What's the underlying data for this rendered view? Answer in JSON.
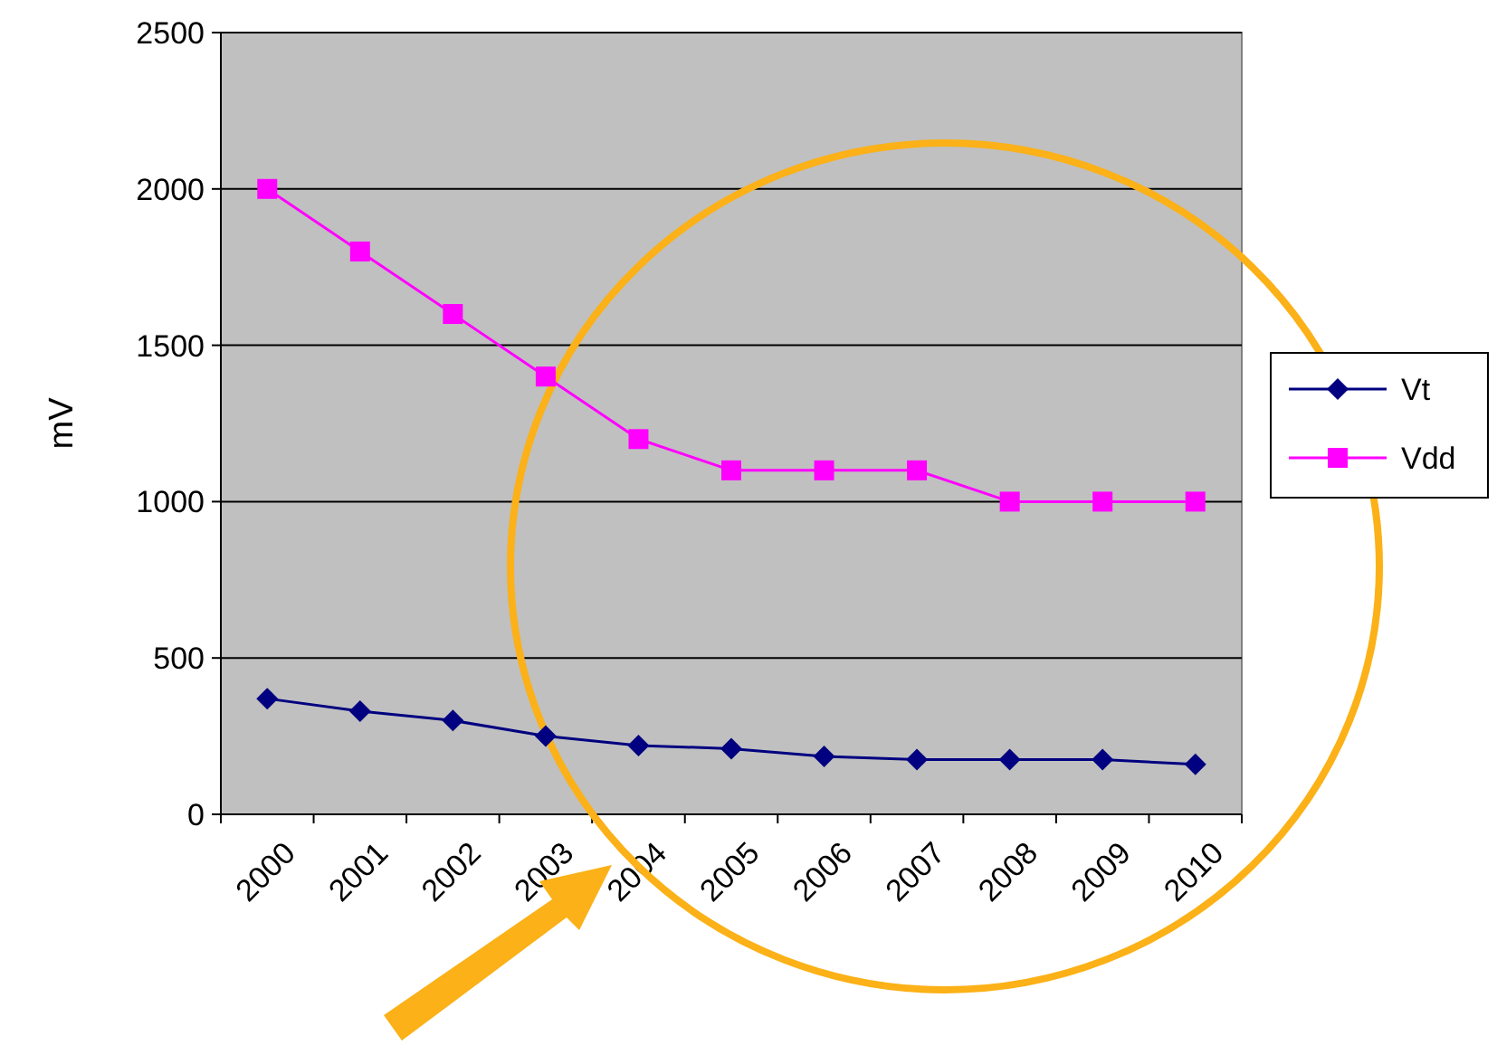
{
  "chart_data": {
    "type": "line",
    "ylabel": "mV",
    "categories": [
      "2000",
      "2001",
      "2002",
      "2003",
      "2004",
      "2005",
      "2006",
      "2007",
      "2008",
      "2009",
      "2010"
    ],
    "series": [
      {
        "name": "Vt",
        "color": "#000080",
        "marker": "diamond",
        "values": [
          370,
          330,
          300,
          250,
          220,
          210,
          185,
          175,
          175,
          175,
          160
        ]
      },
      {
        "name": "Vdd",
        "color": "#ff00ff",
        "marker": "square",
        "values": [
          2000,
          1800,
          1600,
          1400,
          1200,
          1100,
          1100,
          1100,
          1000,
          1000,
          1000
        ]
      }
    ],
    "ylim": [
      0,
      2500
    ],
    "yticks": [
      0,
      500,
      1000,
      1500,
      2000,
      2500
    ],
    "grid": "y",
    "legend": "right"
  }
}
